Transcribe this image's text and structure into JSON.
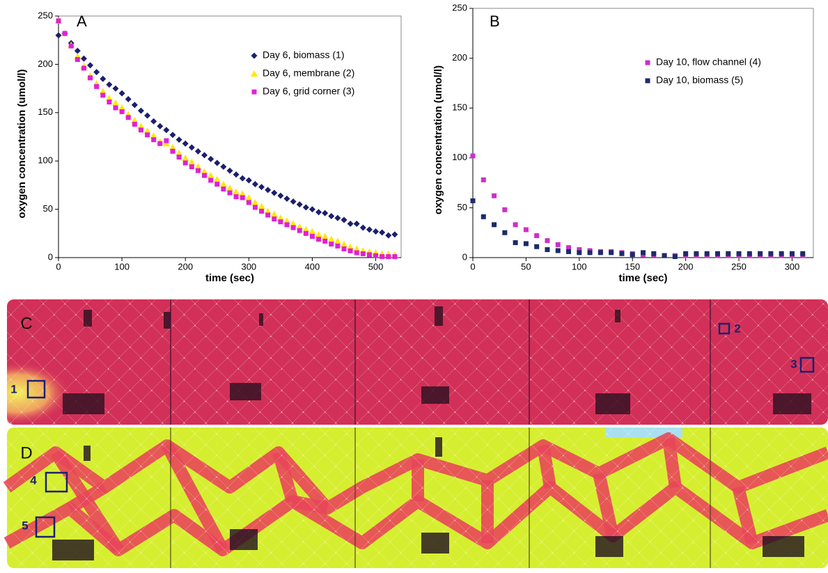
{
  "chart_data": [
    {
      "type": "scatter",
      "label": "A",
      "x_label": "time (sec)",
      "y_label": "oxygen concentration (umol/l)",
      "xlim": [
        0,
        540
      ],
      "xticks": [
        0,
        100,
        200,
        300,
        400,
        500
      ],
      "ylim": [
        0,
        250
      ],
      "yticks": [
        0,
        50,
        100,
        150,
        200,
        250
      ],
      "x": [
        0,
        10,
        20,
        30,
        40,
        50,
        60,
        70,
        80,
        90,
        100,
        110,
        120,
        130,
        140,
        150,
        160,
        170,
        180,
        190,
        200,
        210,
        220,
        230,
        240,
        250,
        260,
        270,
        280,
        290,
        300,
        310,
        320,
        330,
        340,
        350,
        360,
        370,
        380,
        390,
        400,
        410,
        420,
        430,
        440,
        450,
        460,
        470,
        480,
        490,
        500,
        510,
        520,
        530
      ],
      "series": [
        {
          "name": "Day 6, biomass (1)",
          "color": "#1c1f6b",
          "marker": "diamond",
          "values": [
            230,
            232,
            222,
            214,
            206,
            199,
            192,
            185,
            179,
            175,
            170,
            164,
            158,
            152,
            147,
            141,
            136,
            132,
            127,
            122,
            118,
            114,
            110,
            106,
            102,
            98,
            94,
            90,
            86,
            82,
            80,
            76,
            73,
            70,
            67,
            64,
            61,
            58,
            55,
            52,
            50,
            47,
            46,
            43,
            41,
            39,
            35,
            35,
            31,
            29,
            27,
            26,
            23,
            24
          ]
        },
        {
          "name": "Day 6, membrane (2)",
          "color": "#ffe800",
          "marker": "triangle",
          "values": [
            245,
            232,
            220,
            208,
            198,
            188,
            180,
            172,
            165,
            160,
            155,
            148,
            142,
            136,
            131,
            126,
            120,
            118,
            114,
            108,
            103,
            99,
            94,
            89,
            85,
            81,
            76,
            72,
            68,
            66,
            62,
            57,
            53,
            48,
            45,
            41,
            38,
            35,
            32,
            29,
            27,
            24,
            22,
            19,
            17,
            14,
            11,
            9,
            7,
            6,
            5,
            4,
            4,
            3
          ]
        },
        {
          "name": "Day 6, grid corner (3)",
          "color": "#e020d8",
          "marker": "square",
          "values": [
            245,
            232,
            219,
            205,
            196,
            186,
            177,
            168,
            161,
            155,
            151,
            145,
            138,
            132,
            127,
            122,
            118,
            121,
            110,
            104,
            98,
            94,
            90,
            85,
            80,
            76,
            71,
            67,
            63,
            62,
            57,
            52,
            48,
            44,
            40,
            37,
            34,
            31,
            28,
            25,
            22,
            19,
            17,
            14,
            12,
            9,
            7,
            5,
            4,
            3,
            2,
            1,
            1,
            1
          ]
        }
      ]
    },
    {
      "type": "scatter",
      "label": "B",
      "x_label": "time (sec)",
      "y_label": "oxygen concentration (umol/l)",
      "xlim": [
        0,
        320
      ],
      "xticks": [
        0,
        50,
        100,
        150,
        200,
        250,
        300
      ],
      "ylim": [
        0,
        250
      ],
      "yticks": [
        0,
        50,
        100,
        150,
        200,
        250
      ],
      "x": [
        0,
        10,
        20,
        30,
        40,
        50,
        60,
        70,
        80,
        90,
        100,
        110,
        120,
        130,
        140,
        150,
        160,
        170,
        180,
        190,
        200,
        210,
        220,
        230,
        240,
        250,
        260,
        270,
        280,
        290,
        300,
        310
      ],
      "series": [
        {
          "name": "Day 10, flow channel (4)",
          "color": "#cc30c8",
          "marker": "square",
          "values": [
            102,
            78,
            62,
            48,
            33,
            28,
            22,
            17,
            13,
            10,
            8,
            7,
            6,
            6,
            5,
            4,
            3,
            3,
            2,
            2,
            2,
            2,
            2,
            2,
            2,
            2,
            2,
            2,
            2,
            2,
            2,
            2
          ]
        },
        {
          "name": "Day 10, biomass (5)",
          "color": "#1c2a6a",
          "marker": "square",
          "values": [
            57,
            41,
            33,
            25,
            15,
            14,
            11,
            8,
            7,
            6,
            5,
            5,
            5,
            5,
            4,
            3,
            5,
            4,
            2,
            1,
            4,
            4,
            4,
            4,
            4,
            4,
            4,
            4,
            4,
            4,
            4,
            4
          ]
        }
      ]
    }
  ],
  "images": [
    {
      "label": "C",
      "boxes": [
        "1",
        "2",
        "3"
      ]
    },
    {
      "label": "D",
      "boxes": [
        "4",
        "5"
      ]
    }
  ]
}
